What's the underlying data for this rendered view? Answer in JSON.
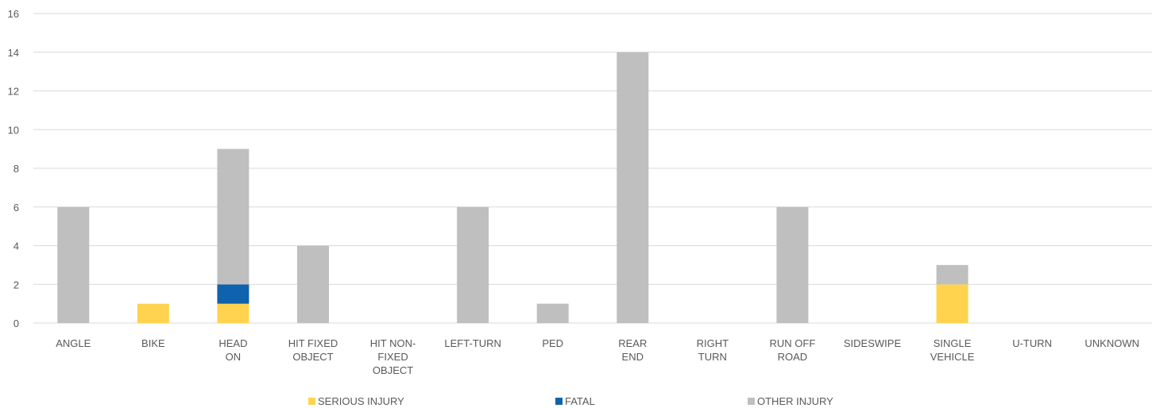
{
  "chart_data": {
    "type": "bar",
    "stacked": true,
    "title": "",
    "xlabel": "",
    "ylabel": "",
    "ylim": [
      0,
      16
    ],
    "yticks": [
      0,
      2,
      4,
      6,
      8,
      10,
      12,
      14,
      16
    ],
    "grid": true,
    "legend_position": "bottom",
    "categories": [
      [
        "ANGLE"
      ],
      [
        "BIKE"
      ],
      [
        "HEAD",
        "ON"
      ],
      [
        "HIT FIXED",
        "OBJECT"
      ],
      [
        "HIT NON-",
        "FIXED",
        "OBJECT"
      ],
      [
        "LEFT-TURN"
      ],
      [
        "PED"
      ],
      [
        "REAR",
        "END"
      ],
      [
        "RIGHT",
        "TURN"
      ],
      [
        "RUN OFF",
        "ROAD"
      ],
      [
        "SIDESWIPE"
      ],
      [
        "SINGLE",
        "VEHICLE"
      ],
      [
        "U-TURN"
      ],
      [
        "UNKNOWN"
      ]
    ],
    "series": [
      {
        "name": "SERIOUS INJURY",
        "color": "#FFD34E",
        "values": [
          0,
          1,
          1,
          0,
          0,
          0,
          0,
          0,
          0,
          0,
          0,
          2,
          0,
          0
        ]
      },
      {
        "name": "FATAL",
        "color": "#0F62AC",
        "values": [
          0,
          0,
          1,
          0,
          0,
          0,
          0,
          0,
          0,
          0,
          0,
          0,
          0,
          0
        ]
      },
      {
        "name": "OTHER INJURY",
        "color": "#BFBFBF",
        "values": [
          6,
          0,
          7,
          4,
          0,
          6,
          1,
          14,
          0,
          6,
          0,
          1,
          0,
          0
        ]
      }
    ]
  }
}
